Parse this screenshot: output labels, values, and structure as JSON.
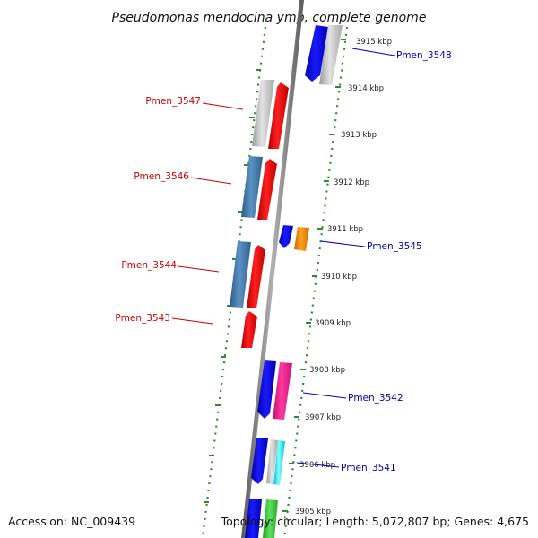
{
  "title": "Pseudomonas mendocina ymp, complete genome",
  "footer": {
    "accession": "Accession: NC_009439",
    "topology": "Topology: circular; Length: 5,072,807 bp; Genes: 4,675"
  },
  "colors": {
    "backbone": "#808080",
    "tick_dots": "#2e8b2e",
    "label_left": "#cc0000",
    "label_right": "#0000aa",
    "gene_red": "#ff0000",
    "gene_blue": "#0000ff",
    "gene_steelblue": "#4682b4",
    "gene_grey": "#c0c0c0",
    "gene_orange": "#ff8c00",
    "gene_pink": "#ff1493",
    "gene_cyan": "#00ffff",
    "gene_green": "#32cd32"
  },
  "kbp_labels": [
    "3915 kbp",
    "3914 kbp",
    "3913 kbp",
    "3912 kbp",
    "3911 kbp",
    "3910 kbp",
    "3909 kbp",
    "3908 kbp",
    "3907 kbp",
    "3906 kbp",
    "3905 kbp"
  ],
  "gene_labels": {
    "left": [
      "Pmen_3547",
      "Pmen_3546",
      "Pmen_3544",
      "Pmen_3543"
    ],
    "right": [
      "Pmen_3548",
      "Pmen_3545",
      "Pmen_3542",
      "Pmen_3541"
    ]
  }
}
